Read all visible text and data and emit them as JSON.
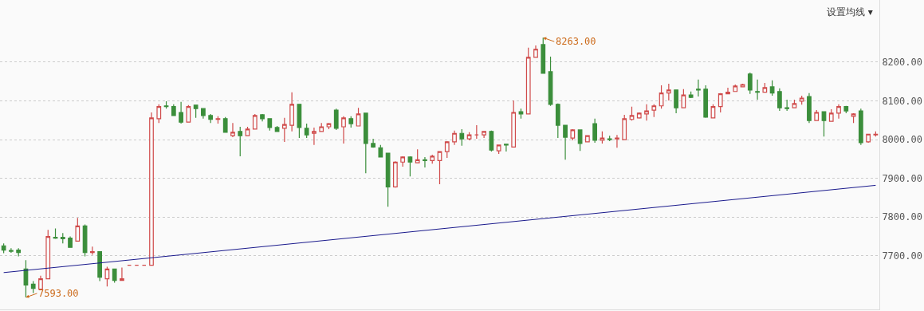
{
  "chart_data": {
    "type": "candlestick",
    "categories": [
      null,
      null,
      null,
      null,
      null,
      null,
      null,
      null,
      null,
      null,
      null,
      null,
      null,
      null,
      null,
      null,
      null,
      null,
      null,
      null,
      null,
      null,
      null,
      null,
      null,
      null,
      null,
      null,
      null,
      null,
      null,
      null,
      null,
      null,
      null,
      null,
      null,
      null,
      null,
      null,
      null,
      null,
      null,
      null,
      null,
      null,
      null,
      null,
      null,
      null,
      null,
      null,
      null,
      null,
      null,
      null,
      null,
      null,
      null,
      null,
      null,
      null,
      null,
      null,
      null,
      null,
      null,
      null,
      null,
      null,
      null,
      null,
      null,
      null,
      null,
      null,
      null,
      null,
      null,
      null,
      null,
      null,
      null,
      null,
      null,
      null,
      null,
      null,
      null,
      null,
      null,
      null,
      null,
      null,
      null,
      null,
      null,
      null,
      null,
      null,
      null,
      null,
      null,
      null,
      null,
      null,
      null,
      null,
      null,
      null,
      null,
      null,
      null,
      null,
      null,
      null,
      null,
      null,
      null
    ],
    "series": [
      {
        "ohlc": [
          [
            7726,
            7732,
            7707,
            7715
          ],
          [
            7714,
            7720,
            7708,
            7712
          ],
          [
            7715,
            7720,
            7699,
            7709
          ],
          [
            7666,
            7689,
            7593,
            7625
          ],
          [
            7627,
            7635,
            7604,
            7616
          ],
          [
            7614,
            7649,
            7614,
            7641
          ],
          [
            7641,
            7767,
            7641,
            7750
          ],
          [
            7748,
            7771,
            7744,
            7746
          ],
          [
            7748,
            7759,
            7732,
            7744
          ],
          [
            7746,
            7750,
            7722,
            7722
          ],
          [
            7738,
            7798,
            7738,
            7777
          ],
          [
            7777,
            7781,
            7699,
            7709
          ],
          [
            7709,
            7724,
            7703,
            7711
          ],
          [
            7711,
            7711,
            7635,
            7645
          ],
          [
            7641,
            7672,
            7621,
            7666
          ],
          [
            7666,
            7666,
            7631,
            7637
          ],
          [
            7637,
            7670,
            7637,
            7641
          ],
          [
            7676,
            7676,
            7676,
            7676
          ],
          [
            7676,
            7676,
            7676,
            7676
          ],
          [
            7676,
            7676,
            7676,
            7676
          ],
          [
            7676,
            8070,
            7676,
            8056
          ],
          [
            8054,
            8091,
            8043,
            8085
          ],
          [
            8087,
            8099,
            8080,
            8085
          ],
          [
            8085,
            8091,
            8062,
            8062
          ],
          [
            8070,
            8097,
            8041,
            8045
          ],
          [
            8045,
            8089,
            8045,
            8085
          ],
          [
            8089,
            8089,
            8056,
            8080
          ],
          [
            8080,
            8080,
            8054,
            8062
          ],
          [
            8062,
            8066,
            8043,
            8052
          ],
          [
            8052,
            8060,
            8041,
            8054
          ],
          [
            8054,
            8058,
            8019,
            8019
          ],
          [
            8010,
            8043,
            8006,
            8019
          ],
          [
            8021,
            8033,
            7957,
            8010
          ],
          [
            8010,
            8033,
            8010,
            8027
          ],
          [
            8027,
            8066,
            8027,
            8062
          ],
          [
            8064,
            8066,
            8047,
            8054
          ],
          [
            8054,
            8054,
            8023,
            8031
          ],
          [
            8031,
            8035,
            8021,
            8021
          ],
          [
            8029,
            8056,
            7994,
            8039
          ],
          [
            8037,
            8122,
            8021,
            8091
          ],
          [
            8091,
            8091,
            8004,
            8031
          ],
          [
            8029,
            8041,
            8004,
            8012
          ],
          [
            8016,
            8031,
            7986,
            8021
          ],
          [
            8021,
            8043,
            8021,
            8033
          ],
          [
            8033,
            8043,
            8027,
            8041
          ],
          [
            8076,
            8080,
            8025,
            8029
          ],
          [
            8033,
            8060,
            7990,
            8056
          ],
          [
            8054,
            8060,
            8031,
            8041
          ],
          [
            8035,
            8082,
            8035,
            8066
          ],
          [
            8068,
            8068,
            7913,
            7990
          ],
          [
            7990,
            8002,
            7979,
            7981
          ],
          [
            7979,
            7986,
            7955,
            7955
          ],
          [
            7965,
            7965,
            7827,
            7878
          ],
          [
            7878,
            7944,
            7876,
            7942
          ],
          [
            7942,
            7957,
            7930,
            7955
          ],
          [
            7955,
            7957,
            7905,
            7942
          ],
          [
            7940,
            7975,
            7940,
            7948
          ],
          [
            7948,
            7955,
            7928,
            7946
          ],
          [
            7946,
            7961,
            7938,
            7957
          ],
          [
            7946,
            7969,
            7885,
            7969
          ],
          [
            7969,
            7996,
            7953,
            7994
          ],
          [
            7994,
            8023,
            7986,
            8016
          ],
          [
            8016,
            8027,
            7984,
            8002
          ],
          [
            8002,
            8019,
            7998,
            8012
          ],
          [
            8012,
            8037,
            8002,
            8012
          ],
          [
            8012,
            8021,
            8004,
            8021
          ],
          [
            8021,
            8023,
            7969,
            7973
          ],
          [
            7971,
            7986,
            7963,
            7986
          ],
          [
            7988,
            7988,
            7969,
            7986
          ],
          [
            7981,
            8101,
            7981,
            8070
          ],
          [
            8072,
            8080,
            8054,
            8066
          ],
          [
            8066,
            8237,
            8066,
            8212
          ],
          [
            8212,
            8243,
            8212,
            8233
          ],
          [
            8245,
            8263,
            8171,
            8171
          ],
          [
            8175,
            8214,
            8087,
            8091
          ],
          [
            8091,
            8093,
            8004,
            8037
          ],
          [
            8037,
            8037,
            7948,
            8006
          ],
          [
            8004,
            8027,
            7998,
            8025
          ],
          [
            8025,
            8025,
            7971,
            7990
          ],
          [
            7994,
            8010,
            7994,
            8010
          ],
          [
            8041,
            8054,
            7992,
            7998
          ],
          [
            7998,
            8021,
            7990,
            8004
          ],
          [
            8002,
            8010,
            7996,
            8000
          ],
          [
            8002,
            8012,
            7979,
            8004
          ],
          [
            8000,
            8064,
            8000,
            8054
          ],
          [
            8052,
            8085,
            8049,
            8062
          ],
          [
            8056,
            8070,
            8054,
            8068
          ],
          [
            8066,
            8091,
            8049,
            8074
          ],
          [
            8076,
            8091,
            8058,
            8087
          ],
          [
            8087,
            8140,
            8080,
            8120
          ],
          [
            8120,
            8144,
            8101,
            8128
          ],
          [
            8128,
            8128,
            8068,
            8082
          ],
          [
            8082,
            8130,
            8082,
            8115
          ],
          [
            8115,
            8124,
            8107,
            8109
          ],
          [
            8130,
            8155,
            8111,
            8128
          ],
          [
            8130,
            8140,
            8056,
            8058
          ],
          [
            8056,
            8091,
            8056,
            8085
          ],
          [
            8085,
            8120,
            8070,
            8118
          ],
          [
            8118,
            8134,
            8118,
            8122
          ],
          [
            8124,
            8142,
            8124,
            8138
          ],
          [
            8136,
            8144,
            8136,
            8142
          ],
          [
            8169,
            8173,
            8118,
            8128
          ],
          [
            8124,
            8155,
            8103,
            8122
          ],
          [
            8122,
            8146,
            8122,
            8134
          ],
          [
            8136,
            8153,
            8113,
            8120
          ],
          [
            8124,
            8132,
            8074,
            8082
          ],
          [
            8082,
            8103,
            8074,
            8080
          ],
          [
            8082,
            8103,
            8082,
            8093
          ],
          [
            8099,
            8113,
            8090,
            8107
          ],
          [
            8111,
            8120,
            8043,
            8049
          ],
          [
            8049,
            8076,
            8049,
            8070
          ],
          [
            8072,
            8072,
            8008,
            8049
          ],
          [
            8047,
            8078,
            8047,
            8068
          ],
          [
            8068,
            8091,
            8054,
            8085
          ],
          [
            8085,
            8087,
            8068,
            8074
          ],
          [
            8060,
            8068,
            8043,
            8066
          ],
          [
            8074,
            8080,
            7986,
            7992
          ],
          [
            7994,
            8014,
            7992,
            8014
          ],
          [
            8012,
            8021,
            8008,
            8014
          ]
        ],
        "colors": [
          "#3b8e3b",
          "#3b8e3b",
          "#3b8e3b",
          "#3b8e3b",
          "#3b8e3b",
          "#d04a4a",
          "#d04a4a",
          "#3b8e3b",
          "#3b8e3b",
          "#3b8e3b",
          "#d04a4a",
          "#3b8e3b",
          "#d04a4a",
          "#3b8e3b",
          "#d04a4a",
          "#3b8e3b",
          "#d04a4a",
          "#d04a4a",
          "#d04a4a",
          "#d04a4a",
          "#d04a4a",
          "#d04a4a",
          "#3b8e3b",
          "#3b8e3b",
          "#3b8e3b",
          "#d04a4a",
          "#3b8e3b",
          "#3b8e3b",
          "#3b8e3b",
          "#d04a4a",
          "#3b8e3b",
          "#d04a4a",
          "#3b8e3b",
          "#d04a4a",
          "#d04a4a",
          "#3b8e3b",
          "#3b8e3b",
          "#3b8e3b",
          "#d04a4a",
          "#d04a4a",
          "#3b8e3b",
          "#3b8e3b",
          "#d04a4a",
          "#d04a4a",
          "#d04a4a",
          "#3b8e3b",
          "#d04a4a",
          "#3b8e3b",
          "#d04a4a",
          "#3b8e3b",
          "#3b8e3b",
          "#3b8e3b",
          "#3b8e3b",
          "#d04a4a",
          "#d04a4a",
          "#3b8e3b",
          "#d04a4a",
          "#3b8e3b",
          "#d04a4a",
          "#d04a4a",
          "#d04a4a",
          "#d04a4a",
          "#3b8e3b",
          "#d04a4a",
          "#d04a4a",
          "#d04a4a",
          "#3b8e3b",
          "#d04a4a",
          "#3b8e3b",
          "#d04a4a",
          "#3b8e3b",
          "#d04a4a",
          "#d04a4a",
          "#3b8e3b",
          "#3b8e3b",
          "#3b8e3b",
          "#3b8e3b",
          "#d04a4a",
          "#3b8e3b",
          "#d04a4a",
          "#3b8e3b",
          "#d04a4a",
          "#3b8e3b",
          "#d04a4a",
          "#d04a4a",
          "#d04a4a",
          "#d04a4a",
          "#d04a4a",
          "#d04a4a",
          "#d04a4a",
          "#d04a4a",
          "#3b8e3b",
          "#d04a4a",
          "#3b8e3b",
          "#3b8e3b",
          "#3b8e3b",
          "#d04a4a",
          "#d04a4a",
          "#d04a4a",
          "#d04a4a",
          "#d04a4a",
          "#3b8e3b",
          "#3b8e3b",
          "#d04a4a",
          "#3b8e3b",
          "#3b8e3b",
          "#3b8e3b",
          "#d04a4a",
          "#d04a4a",
          "#3b8e3b",
          "#d04a4a",
          "#3b8e3b",
          "#d04a4a",
          "#d04a4a",
          "#3b8e3b",
          "#d04a4a",
          "#3b8e3b",
          "#d04a4a",
          "#d04a4a"
        ]
      },
      {
        "type": "line",
        "color": "#1a1a8c",
        "values": [
          7657,
          null,
          null,
          null,
          null,
          null,
          null,
          null,
          null,
          null,
          null,
          null,
          null,
          null,
          null,
          null,
          null,
          null,
          null,
          null,
          null,
          null,
          null,
          null,
          null,
          null,
          null,
          null,
          null,
          null,
          null,
          null,
          null,
          null,
          null,
          null,
          null,
          null,
          null,
          null,
          null,
          null,
          null,
          null,
          null,
          null,
          null,
          null,
          null,
          null,
          null,
          null,
          null,
          null,
          null,
          null,
          null,
          null,
          null,
          null,
          null,
          null,
          null,
          null,
          null,
          null,
          null,
          null,
          null,
          null,
          null,
          null,
          null,
          null,
          null,
          null,
          null,
          null,
          null,
          null,
          null,
          null,
          null,
          null,
          null,
          null,
          null,
          null,
          null,
          null,
          null,
          null,
          null,
          null,
          null,
          null,
          null,
          null,
          null,
          null,
          null,
          null,
          null,
          null,
          null,
          null,
          null,
          null,
          null,
          null,
          null,
          null,
          null,
          null,
          null,
          null,
          null,
          null,
          7882
        ]
      }
    ],
    "ylim": [
      7562,
      8360
    ],
    "yticks": [
      {
        "value": 7700,
        "label": "7700.00"
      },
      {
        "value": 7800,
        "label": "7800.00"
      },
      {
        "value": 7900,
        "label": "7900.00"
      },
      {
        "value": 8000,
        "label": "8000.00"
      },
      {
        "value": 8100,
        "label": "8100.00"
      },
      {
        "value": 8200,
        "label": "8200.00"
      }
    ],
    "tick_labels": "y",
    "grid": "y",
    "annotations": [
      "8263.00",
      "7593.00",
      "设置均线 ▾"
    ]
  }
}
